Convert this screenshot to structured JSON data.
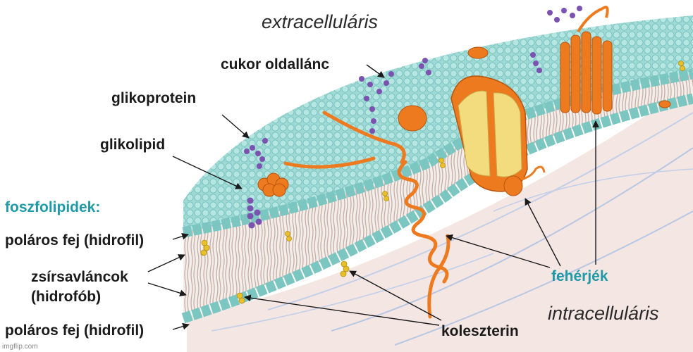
{
  "labels": {
    "extracellular": "extracelluláris",
    "intracellular": "intracelluláris",
    "sugar_side_chain": "cukor oldallánc",
    "glycoprotein": "glikoprotein",
    "glycolipid": "glikolipid",
    "phospholipids": "foszfolipidek:",
    "polar_head_top": "poláros fej (hidrofil)",
    "fatty_acid_chains_1": "zsírsavláncok",
    "fatty_acid_chains_2": "(hidrofób)",
    "polar_head_bottom": "poláros fej (hidrofil)",
    "proteins": "fehérjék",
    "cholesterol": "koleszterin"
  },
  "watermark": "imgflip.com",
  "colors": {
    "membrane_head": "#8fd3cf",
    "membrane_head_edge": "#5fb3ae",
    "protein_orange": "#ee7a1f",
    "channel_yellow": "#f3dc7e",
    "sugar_purple": "#7b52b0",
    "label_teal": "#1e9aa8"
  }
}
